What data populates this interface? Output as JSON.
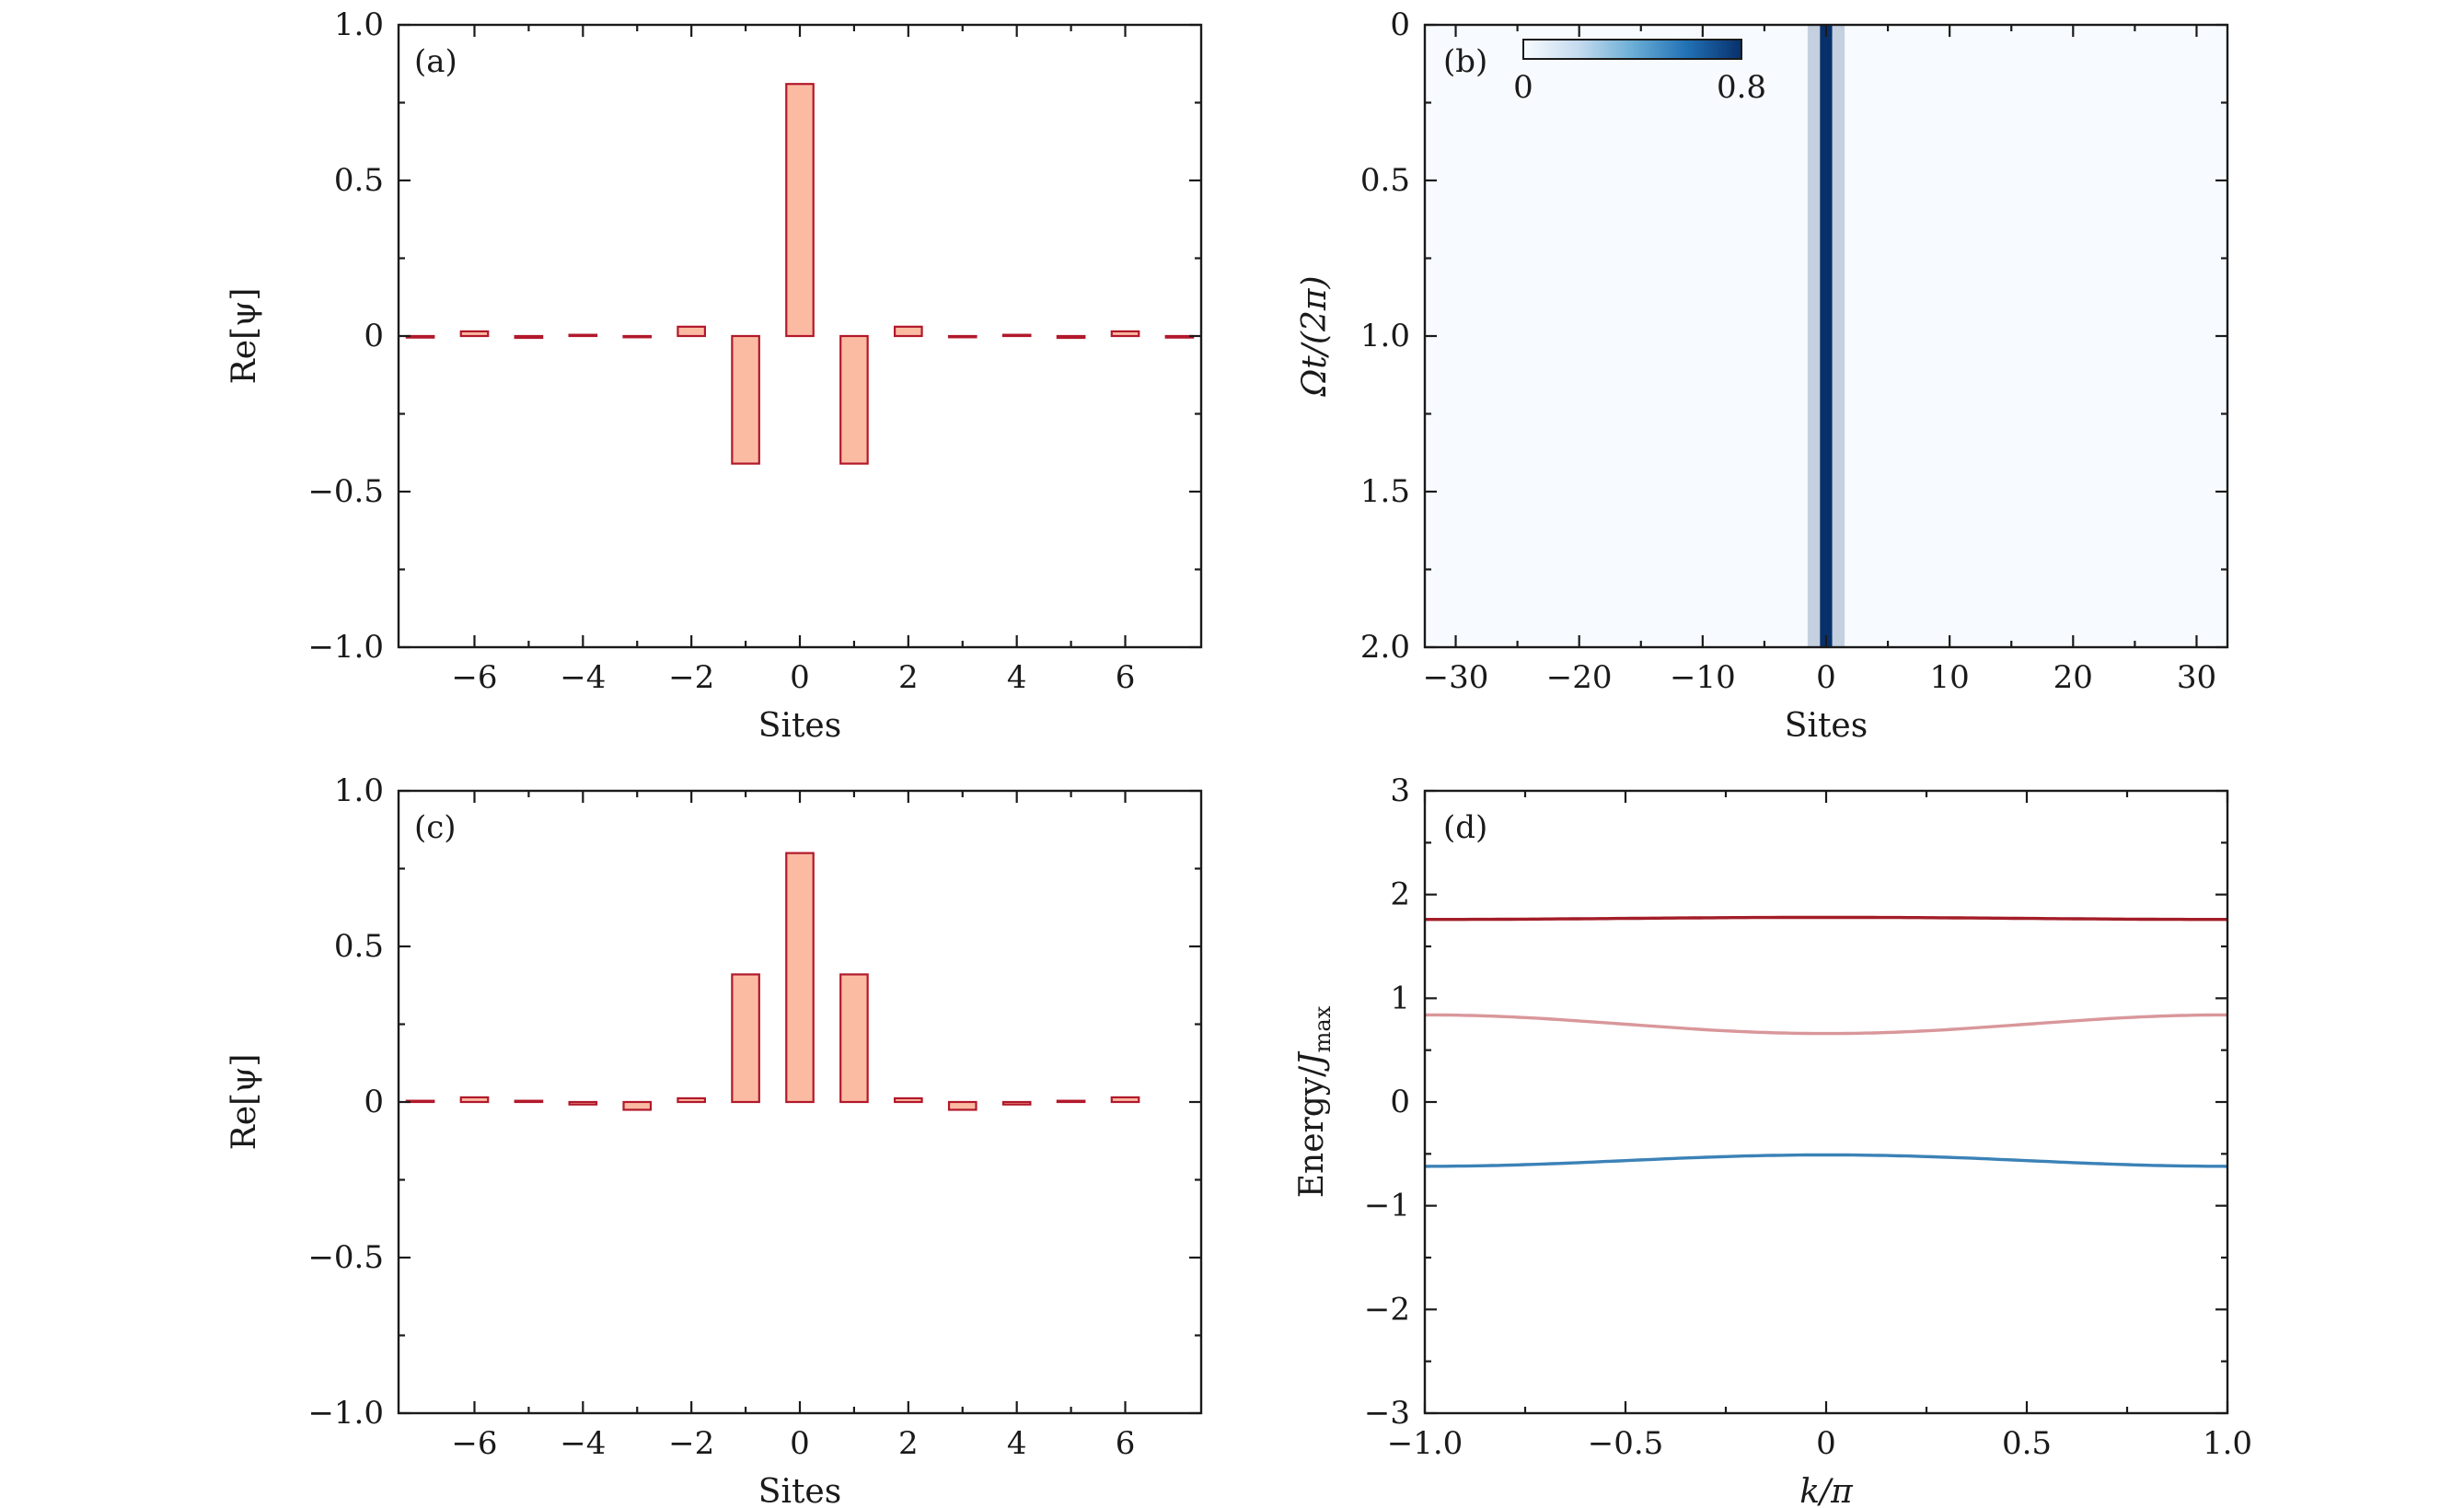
{
  "chart_data": [
    {
      "id": "a",
      "type": "bar",
      "panel_label": "(a)",
      "xlabel": "Sites",
      "ylabel": "Re[ψ]",
      "xlim": [
        -7.4,
        7.4
      ],
      "ylim": [
        -1.0,
        1.0
      ],
      "x_ticks": [
        -6,
        -4,
        -2,
        0,
        2,
        4,
        6
      ],
      "x_tick_labels": [
        "−6",
        "−4",
        "−2",
        "0",
        "2",
        "4",
        "6"
      ],
      "y_ticks": [
        -1.0,
        -0.5,
        0,
        0.5,
        1.0
      ],
      "y_tick_labels": [
        "−1.0",
        "−0.5",
        "0",
        "0.5",
        "1.0"
      ],
      "bar_color": "#fbbba2",
      "edge_color": "#b2182b",
      "x": [
        -7,
        -6,
        -5,
        -4,
        -3,
        -2,
        -1,
        0,
        1,
        2,
        3,
        4,
        5,
        6,
        7
      ],
      "values": [
        -0.005,
        0.015,
        -0.006,
        0.004,
        -0.004,
        0.03,
        -0.41,
        0.81,
        -0.41,
        0.03,
        -0.004,
        0.004,
        -0.006,
        0.015,
        -0.005
      ]
    },
    {
      "id": "b",
      "type": "heatmap",
      "panel_label": "(b)",
      "xlabel": "Sites",
      "ylabel": "Ωt/(2π)",
      "xlim": [
        -32.5,
        32.5
      ],
      "ylim": [
        0,
        2.0
      ],
      "y_inverted": true,
      "x_ticks": [
        -30,
        -20,
        -10,
        0,
        10,
        20,
        30
      ],
      "x_tick_labels": [
        "−30",
        "−20",
        "−10",
        "0",
        "10",
        "20",
        "30"
      ],
      "y_ticks": [
        0,
        0.5,
        1.0,
        1.5,
        2.0
      ],
      "y_tick_labels": [
        "0",
        "0.5",
        "1.0",
        "1.5",
        "2.0"
      ],
      "colorbar": {
        "min": 0,
        "max": 0.8,
        "min_label": "0",
        "max_label": "0.8",
        "color_low": "#f7fbff",
        "color_high": "#08306b"
      },
      "columns": [
        {
          "site": -1,
          "value": 0.17
        },
        {
          "site": 0,
          "value": 0.8
        },
        {
          "site": 1,
          "value": 0.17
        }
      ],
      "background_value": 0.0
    },
    {
      "id": "c",
      "type": "bar",
      "panel_label": "(c)",
      "xlabel": "Sites",
      "ylabel": "Re[ψ]",
      "xlim": [
        -7.4,
        7.4
      ],
      "ylim": [
        -1.0,
        1.0
      ],
      "x_ticks": [
        -6,
        -4,
        -2,
        0,
        2,
        4,
        6
      ],
      "x_tick_labels": [
        "−6",
        "−4",
        "−2",
        "0",
        "2",
        "4",
        "6"
      ],
      "y_ticks": [
        -1.0,
        -0.5,
        0,
        0.5,
        1.0
      ],
      "y_tick_labels": [
        "−1.0",
        "−0.5",
        "0",
        "0.5",
        "1.0"
      ],
      "bar_color": "#fbbba2",
      "edge_color": "#b2182b",
      "x": [
        -7,
        -6,
        -5,
        -4,
        -3,
        -2,
        -1,
        0,
        1,
        2,
        3,
        4,
        5,
        6
      ],
      "values": [
        0.004,
        0.015,
        0.004,
        -0.008,
        -0.025,
        0.012,
        0.41,
        0.8,
        0.41,
        0.012,
        -0.025,
        -0.008,
        0.004,
        0.015
      ]
    },
    {
      "id": "d",
      "type": "line",
      "panel_label": "(d)",
      "xlabel": "k/π",
      "ylabel": "Energy/J_max",
      "ylabel_main": "Energy/",
      "ylabel_var": "J",
      "ylabel_sub": "max",
      "xlim": [
        -1.0,
        1.0
      ],
      "ylim": [
        -3,
        3
      ],
      "x_ticks": [
        -1.0,
        -0.5,
        0,
        0.5,
        1.0
      ],
      "x_tick_labels": [
        "−1.0",
        "−0.5",
        "0",
        "0.5",
        "1.0"
      ],
      "y_ticks": [
        -3,
        -2,
        -1,
        0,
        1,
        2,
        3
      ],
      "y_tick_labels": [
        "−3",
        "−2",
        "−1",
        "0",
        "1",
        "2",
        "3"
      ],
      "series": [
        {
          "name": "upper band",
          "color": "#a31d27",
          "x": [
            -1.0,
            -0.5,
            0,
            0.5,
            1.0
          ],
          "values": [
            1.76,
            1.77,
            1.78,
            1.77,
            1.76
          ]
        },
        {
          "name": "middle band",
          "color": "#d9979b",
          "x": [
            -1.0,
            -0.5,
            0,
            0.5,
            1.0
          ],
          "values": [
            0.84,
            0.75,
            0.66,
            0.75,
            0.84
          ]
        },
        {
          "name": "lower band",
          "color": "#3b82b7",
          "x": [
            -1.0,
            -0.5,
            0,
            0.5,
            1.0
          ],
          "values": [
            -0.62,
            -0.57,
            -0.51,
            -0.57,
            -0.62
          ]
        }
      ]
    }
  ]
}
